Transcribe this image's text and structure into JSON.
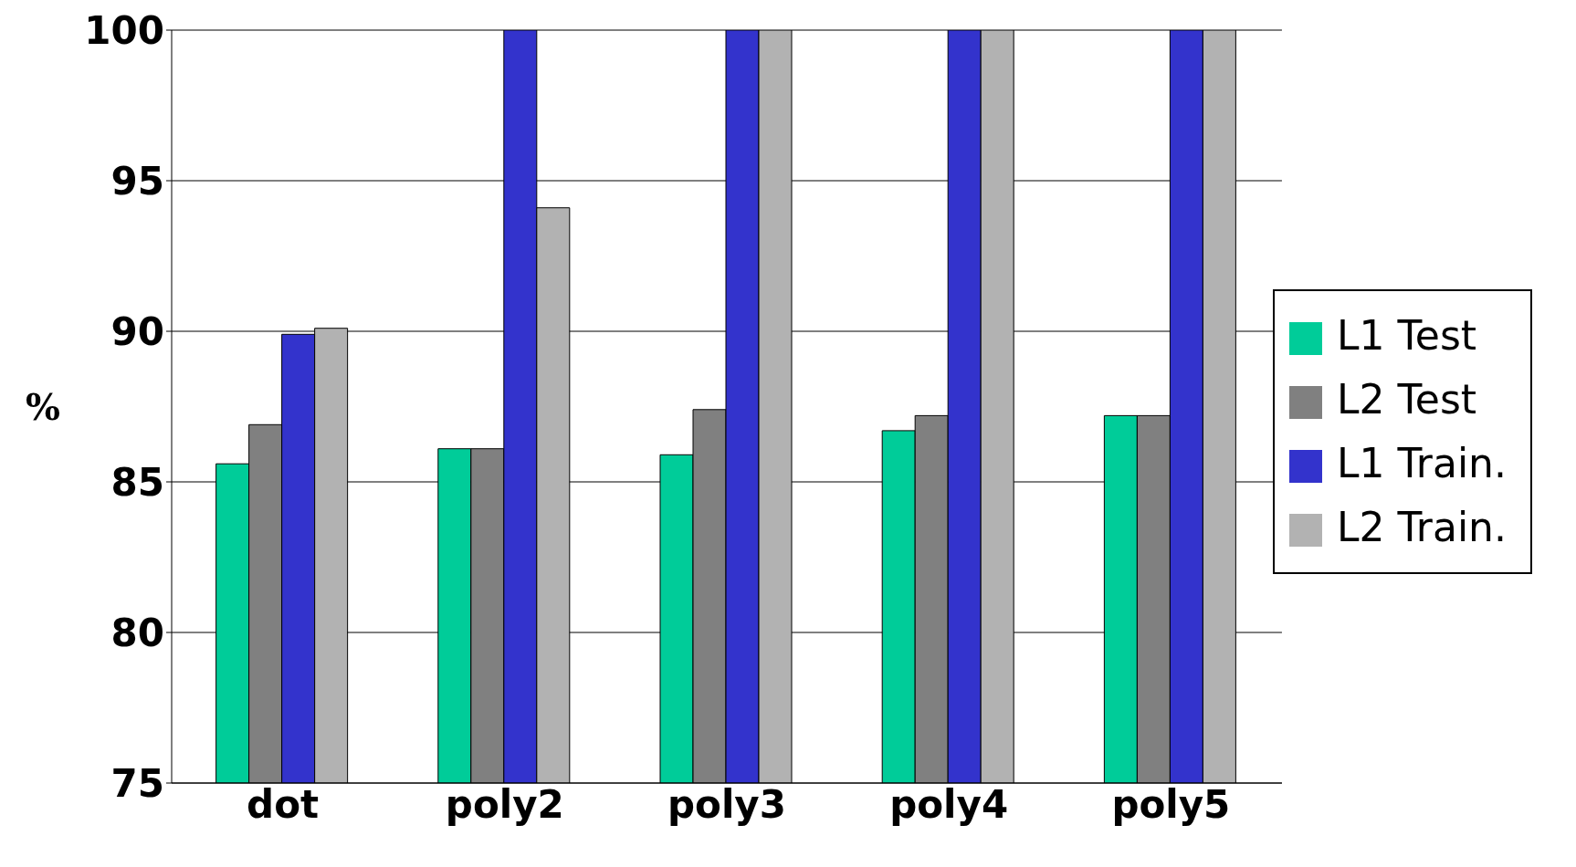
{
  "chart_data": {
    "type": "bar",
    "ylabel": "%",
    "categories": [
      "dot",
      "poly2",
      "poly3",
      "poly4",
      "poly5"
    ],
    "series": [
      {
        "name": "L1 Test",
        "color": "#00cc99",
        "values": [
          85.6,
          86.1,
          85.9,
          86.7,
          87.2
        ]
      },
      {
        "name": "L2 Test",
        "color": "#808080",
        "values": [
          86.9,
          86.1,
          87.4,
          87.2,
          87.2
        ]
      },
      {
        "name": "L1 Train.",
        "color": "#3333cc",
        "values": [
          89.9,
          100,
          100,
          100,
          100
        ]
      },
      {
        "name": "L2 Train.",
        "color": "#b2b2b2",
        "values": [
          90.1,
          94.1,
          100,
          100,
          100
        ]
      }
    ],
    "ylim": [
      75,
      100
    ],
    "yticks": [
      75,
      80,
      85,
      90,
      95,
      100
    ],
    "grid": "y",
    "legend": "right"
  }
}
